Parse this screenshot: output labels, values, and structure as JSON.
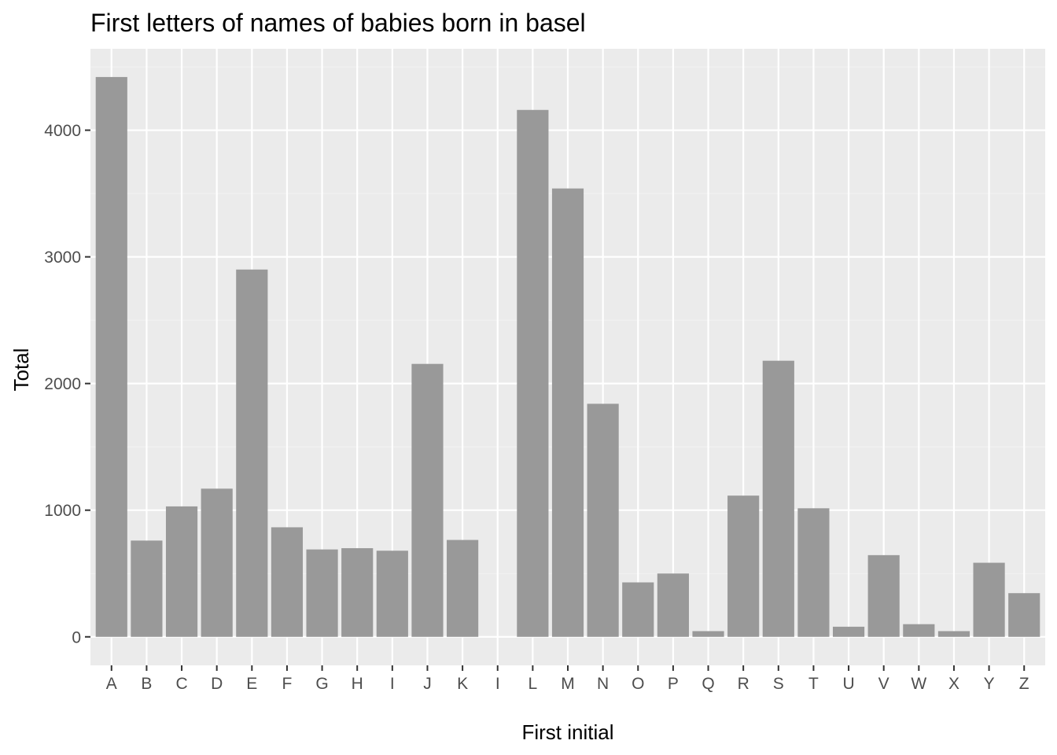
{
  "chart_data": {
    "type": "bar",
    "title": "First letters of names of babies born in basel",
    "xlabel": "First initial",
    "ylabel": "Total",
    "categories": [
      "A",
      "B",
      "C",
      "D",
      "E",
      "F",
      "G",
      "H",
      "I",
      "J",
      "K",
      "I",
      "L",
      "M",
      "N",
      "O",
      "P",
      "Q",
      "R",
      "S",
      "T",
      "U",
      "V",
      "W",
      "X",
      "Y",
      "Z"
    ],
    "values": [
      4420,
      760,
      1030,
      1170,
      2900,
      865,
      690,
      700,
      680,
      2155,
      765,
      0,
      4160,
      3540,
      1840,
      430,
      500,
      45,
      1115,
      2180,
      1015,
      80,
      645,
      100,
      45,
      585,
      345
    ],
    "yticks": [
      0,
      1000,
      2000,
      3000,
      4000
    ],
    "ylim": [
      -225,
      4643
    ],
    "grid": true,
    "legend": "none",
    "colors": {
      "bar": "#999999",
      "panel": "#ebebeb",
      "grid_major": "#ffffff",
      "grid_minor": "#f2f2f2",
      "tick": "#333333"
    }
  }
}
